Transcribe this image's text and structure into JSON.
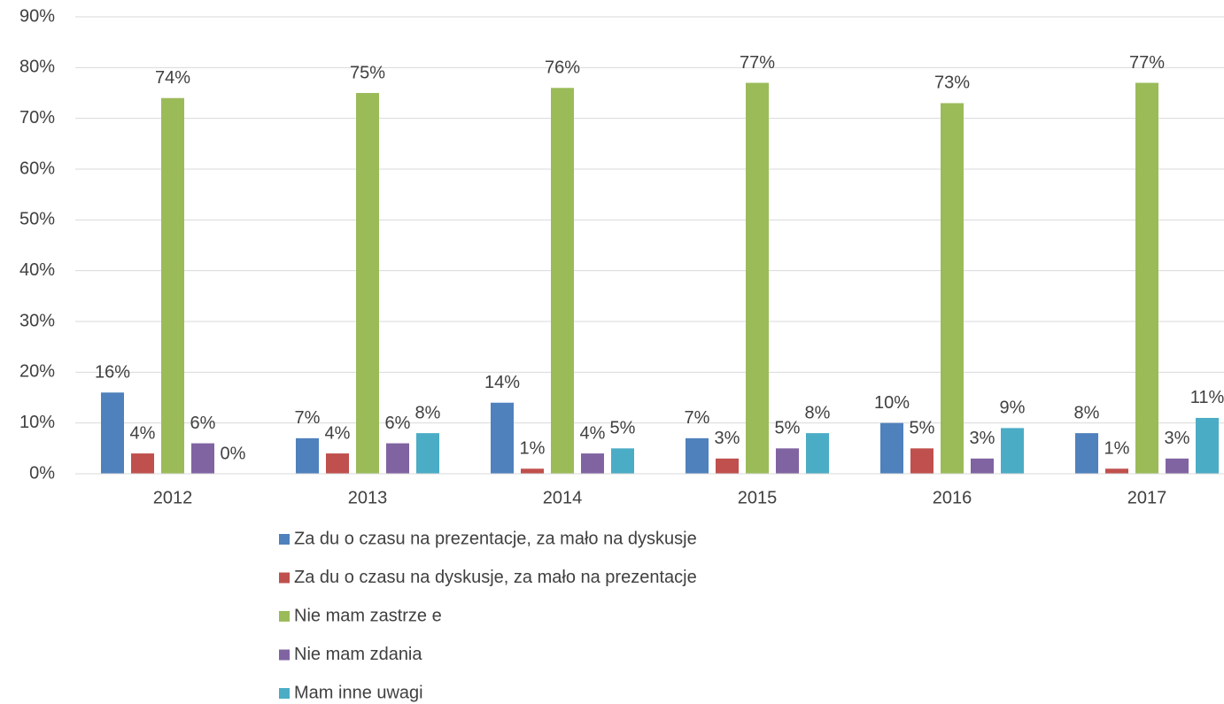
{
  "chart_data": {
    "type": "bar",
    "categories": [
      "2012",
      "2013",
      "2014",
      "2015",
      "2016",
      "2017"
    ],
    "series": [
      {
        "name": "Za du  o czasu na prezentacje, za mało na dyskusje",
        "color": "#4f81bd",
        "values": [
          16,
          7,
          14,
          7,
          10,
          8
        ],
        "value_labels": [
          "16%",
          "7%",
          "14%",
          "7%",
          "10%",
          "8%"
        ]
      },
      {
        "name": "Za du  o czasu na dyskusje, za mało na prezentacje",
        "color": "#c0504d",
        "values": [
          4,
          4,
          1,
          3,
          5,
          1
        ],
        "value_labels": [
          "4%",
          "4%",
          "1%",
          "3%",
          "5%",
          "1%"
        ]
      },
      {
        "name": "Nie mam zastrze  e",
        "color": "#9bbb59",
        "values": [
          74,
          75,
          76,
          77,
          73,
          77
        ],
        "value_labels": [
          "74%",
          "75%",
          "76%",
          "77%",
          "73%",
          "77%"
        ]
      },
      {
        "name": "Nie mam zdania",
        "color": "#8064a2",
        "values": [
          6,
          6,
          4,
          5,
          3,
          3
        ],
        "value_labels": [
          "6%",
          "6%",
          "4%",
          "5%",
          "3%",
          "3%"
        ]
      },
      {
        "name": "Mam inne uwagi",
        "color": "#4bacc6",
        "values": [
          0,
          8,
          5,
          8,
          9,
          11
        ],
        "value_labels": [
          "0%",
          "8%",
          "5%",
          "8%",
          "9%",
          "11%"
        ]
      }
    ],
    "ylim": [
      0,
      90
    ],
    "yticks": [
      {
        "value": 0,
        "label": "0%"
      },
      {
        "value": 10,
        "label": "10%"
      },
      {
        "value": 20,
        "label": "20%"
      },
      {
        "value": 30,
        "label": "30%"
      },
      {
        "value": 40,
        "label": "40%"
      },
      {
        "value": 50,
        "label": "50%"
      },
      {
        "value": 60,
        "label": "60%"
      },
      {
        "value": 70,
        "label": "70%"
      },
      {
        "value": 80,
        "label": "80%"
      },
      {
        "value": 90,
        "label": "90%"
      }
    ],
    "grid": true,
    "legend": "bottom"
  }
}
